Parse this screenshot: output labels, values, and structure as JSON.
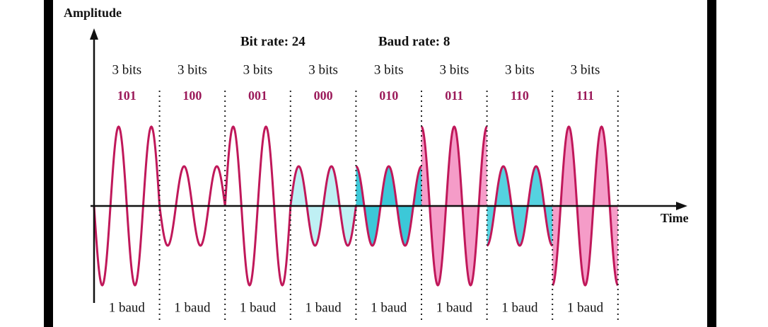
{
  "labels": {
    "y_axis": "Amplitude",
    "x_axis": "Time",
    "bit_rate": "Bit rate: 24",
    "baud_rate": "Baud rate: 8"
  },
  "segments": [
    {
      "bits_label": "3 bits",
      "code": "101",
      "baud_label": "1 baud"
    },
    {
      "bits_label": "3 bits",
      "code": "100",
      "baud_label": "1 baud"
    },
    {
      "bits_label": "3 bits",
      "code": "001",
      "baud_label": "1 baud"
    },
    {
      "bits_label": "3 bits",
      "code": "000",
      "baud_label": "1 baud"
    },
    {
      "bits_label": "3 bits",
      "code": "010",
      "baud_label": "1 baud"
    },
    {
      "bits_label": "3 bits",
      "code": "011",
      "baud_label": "1 baud"
    },
    {
      "bits_label": "3 bits",
      "code": "110",
      "baud_label": "1 baud"
    },
    {
      "bits_label": "3 bits",
      "code": "111",
      "baud_label": "1 baud"
    }
  ]
}
